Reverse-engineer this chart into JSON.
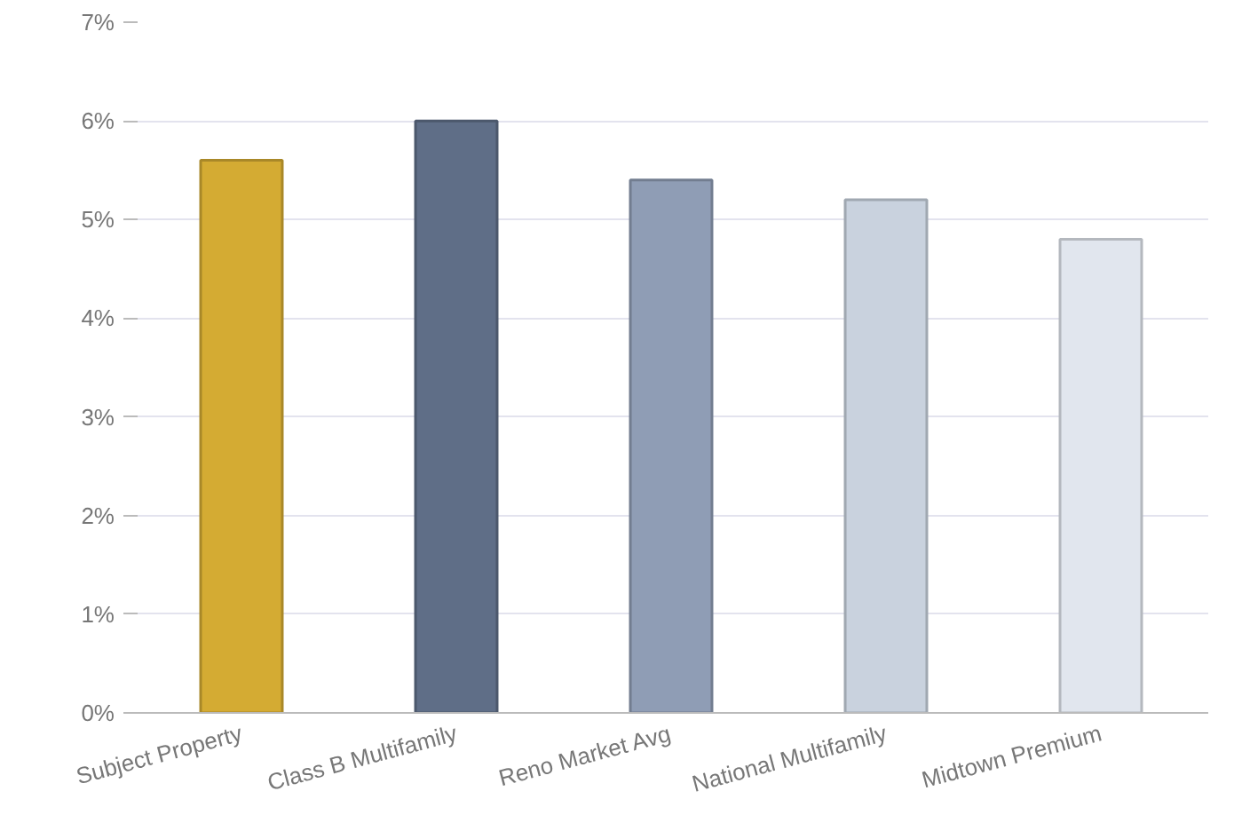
{
  "chart_data": {
    "type": "bar",
    "categories": [
      "Subject Property",
      "Class B Multifamily",
      "Reno Market Avg",
      "National Multifamily",
      "Midtown Premium"
    ],
    "values": [
      5.6,
      6.0,
      5.4,
      5.2,
      4.8
    ],
    "colors": [
      "#d4ab33",
      "#5f6e87",
      "#8f9db5",
      "#c9d2de",
      "#e1e6ee"
    ],
    "ylim": [
      0,
      7
    ],
    "yticks": [
      {
        "value": 0,
        "label": "0%"
      },
      {
        "value": 1,
        "label": "1%"
      },
      {
        "value": 2,
        "label": "2%"
      },
      {
        "value": 3,
        "label": "3%"
      },
      {
        "value": 4,
        "label": "4%"
      },
      {
        "value": 5,
        "label": "5%"
      },
      {
        "value": 6,
        "label": "6%"
      },
      {
        "value": 7,
        "label": "7%"
      }
    ],
    "grid": "y"
  }
}
